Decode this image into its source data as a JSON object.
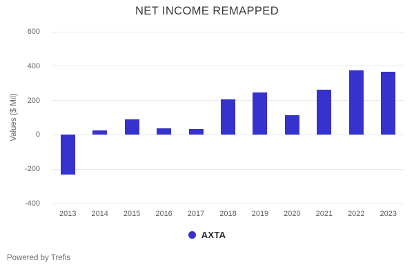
{
  "title": "NET INCOME REMAPPED",
  "chart_data": {
    "type": "bar",
    "title": "NET INCOME REMAPPED",
    "xlabel": "",
    "ylabel": "Values ($ Mil)",
    "categories": [
      "2013",
      "2014",
      "2015",
      "2016",
      "2017",
      "2018",
      "2019",
      "2020",
      "2021",
      "2022",
      "2023"
    ],
    "series": [
      {
        "name": "AXTA",
        "color": "#3532cd",
        "values": [
          -230,
          27,
          89,
          38,
          34,
          205,
          246,
          115,
          263,
          374,
          369
        ]
      }
    ],
    "ylim": [
      -400,
      600
    ],
    "yticks": [
      600,
      400,
      200,
      0,
      -200,
      -400
    ],
    "grid": true,
    "legend_position": "bottom"
  },
  "legend": {
    "items": [
      {
        "label": "AXTA",
        "color": "#3532cd"
      }
    ]
  },
  "footer": {
    "text": "Powered by Trefis"
  }
}
